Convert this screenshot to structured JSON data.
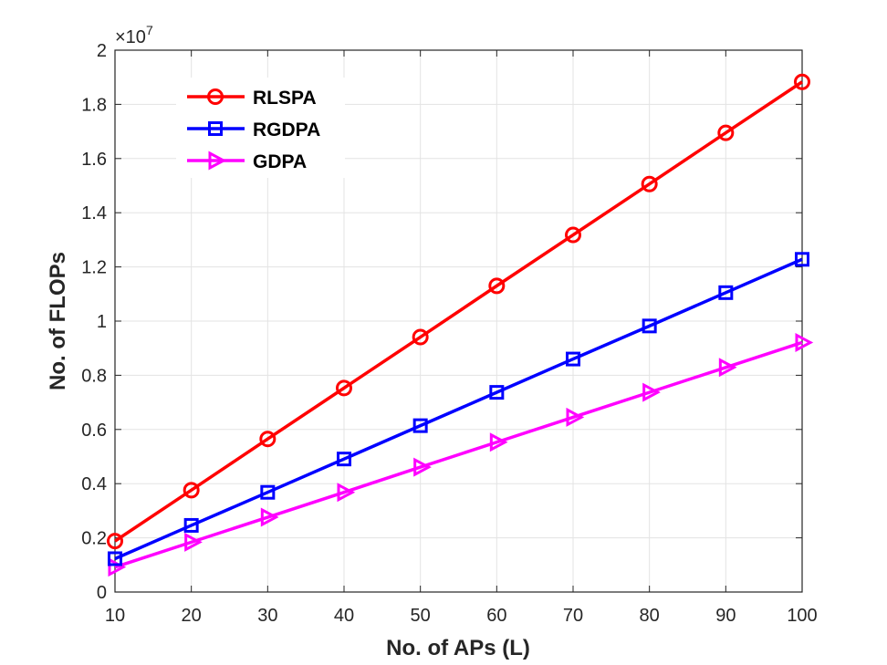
{
  "chart_data": {
    "type": "line",
    "title": "",
    "xlabel": "No. of APs (L)",
    "ylabel": "No. of FLOPs",
    "exponent_label": "×10",
    "exponent_power": "7",
    "x": [
      10,
      20,
      30,
      40,
      50,
      60,
      70,
      80,
      90,
      100
    ],
    "xlim": [
      10,
      100
    ],
    "ylim": [
      0,
      2
    ],
    "xticks": [
      "10",
      "20",
      "30",
      "40",
      "50",
      "60",
      "70",
      "80",
      "90",
      "100"
    ],
    "yticks": [
      "0",
      "0.2",
      "0.4",
      "0.6",
      "0.8",
      "1",
      "1.2",
      "1.4",
      "1.6",
      "1.8",
      "2"
    ],
    "grid": true,
    "legend_position": "top-left",
    "series": [
      {
        "name": "RLSPA",
        "color": "#ff0000",
        "marker": "circle",
        "values": [
          0.188,
          0.376,
          0.565,
          0.753,
          0.941,
          1.13,
          1.318,
          1.506,
          1.695,
          1.883
        ]
      },
      {
        "name": "RGDPA",
        "color": "#0000ff",
        "marker": "square",
        "values": [
          0.123,
          0.246,
          0.368,
          0.491,
          0.614,
          0.737,
          0.86,
          0.982,
          1.105,
          1.228
        ]
      },
      {
        "name": "GDPA",
        "color": "#ff00ff",
        "marker": "triangle-right",
        "values": [
          0.092,
          0.184,
          0.276,
          0.368,
          0.461,
          0.553,
          0.645,
          0.737,
          0.829,
          0.921
        ]
      }
    ]
  }
}
